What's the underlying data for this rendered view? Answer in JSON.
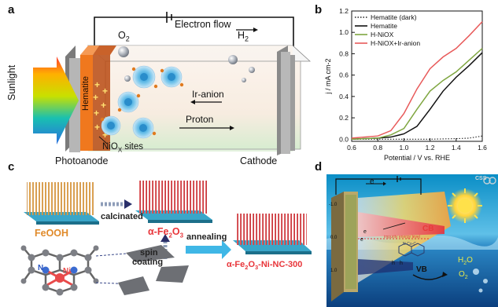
{
  "panels": {
    "a": {
      "label": "a",
      "electron_flow": "Electron flow",
      "o2": "O",
      "o2_sub": "2",
      "h2": "H",
      "h2_sub": "2",
      "sunlight": "Sunlight",
      "hematite": "Hematite",
      "ir_anion": "Ir-anion",
      "proton": "Proton",
      "niox_sites": "NiO",
      "niox_sub": "X",
      "niox_suffix": " sites",
      "photoanode": "Photoanode",
      "cathode": "Cathode"
    },
    "b": {
      "label": "b"
    },
    "c": {
      "label": "c",
      "feooh": "FeOOH",
      "calcinated": "calcinated",
      "fe2o3_prefix": "α-Fe",
      "fe2o3_sub1": "2",
      "fe2o3_mid": "O",
      "fe2o3_sub2": "3",
      "spin": "spin",
      "coating": "coating",
      "annealing": "annealing",
      "product_prefix": "α-Fe",
      "product_sub1": "2",
      "product_mid": "O",
      "product_sub2": "3",
      "product_suffix": "-Ni-NC-300",
      "atom_n": "N",
      "atom_ni": "Ni"
    },
    "d": {
      "label": "d",
      "e_top": "e",
      "scale_ticks": [
        "-1.0",
        "0.0",
        "1.0"
      ],
      "cb": "CB",
      "vb": "VB",
      "impurity": "impurity energy level",
      "e1": "e",
      "e2": "e",
      "h1": "h",
      "h2": "h",
      "h2o": "H",
      "h2o_sub": "2",
      "h2o_end": "O",
      "o2": "O",
      "o2_sub": "2",
      "ncoc": "N-Co-C",
      "watermark": "CSS"
    }
  },
  "chart_data": {
    "type": "line",
    "title": "",
    "xlabel": "Potential / V vs. RHE",
    "ylabel": "j / mA cm-2",
    "xlim": [
      0.6,
      1.6
    ],
    "ylim": [
      -0.02,
      1.2
    ],
    "xticks": [
      "0.6",
      "0.8",
      "1.0",
      "1.2",
      "1.4",
      "1.6"
    ],
    "yticks": [
      "0.0",
      "0.2",
      "0.4",
      "0.6",
      "0.8",
      "1.0",
      "1.2"
    ],
    "legend_position": "top-left",
    "series": [
      {
        "name": "Hematite (dark)",
        "color": "#222222",
        "style": "dotted",
        "x": [
          0.6,
          0.8,
          1.0,
          1.2,
          1.4,
          1.5,
          1.6
        ],
        "y": [
          0.0,
          0.0,
          0.0,
          0.0,
          0.005,
          0.01,
          0.03
        ]
      },
      {
        "name": "Hematite",
        "color": "#111111",
        "style": "solid",
        "x": [
          0.6,
          0.8,
          0.9,
          1.0,
          1.1,
          1.2,
          1.3,
          1.4,
          1.5,
          1.6
        ],
        "y": [
          0.0,
          0.01,
          0.02,
          0.05,
          0.12,
          0.28,
          0.45,
          0.58,
          0.69,
          0.81
        ]
      },
      {
        "name": "H-NiOX",
        "color": "#7fa640",
        "style": "solid",
        "x": [
          0.6,
          0.8,
          0.9,
          1.0,
          1.1,
          1.2,
          1.3,
          1.4,
          1.5,
          1.6
        ],
        "y": [
          0.0,
          0.01,
          0.04,
          0.1,
          0.28,
          0.45,
          0.55,
          0.63,
          0.74,
          0.85
        ]
      },
      {
        "name": "H-NiOX+Ir-anion",
        "color": "#e85a5a",
        "style": "solid",
        "x": [
          0.6,
          0.8,
          0.9,
          1.0,
          1.1,
          1.2,
          1.3,
          1.4,
          1.5,
          1.6
        ],
        "y": [
          0.01,
          0.03,
          0.08,
          0.24,
          0.47,
          0.66,
          0.77,
          0.85,
          0.97,
          1.1
        ]
      }
    ]
  }
}
